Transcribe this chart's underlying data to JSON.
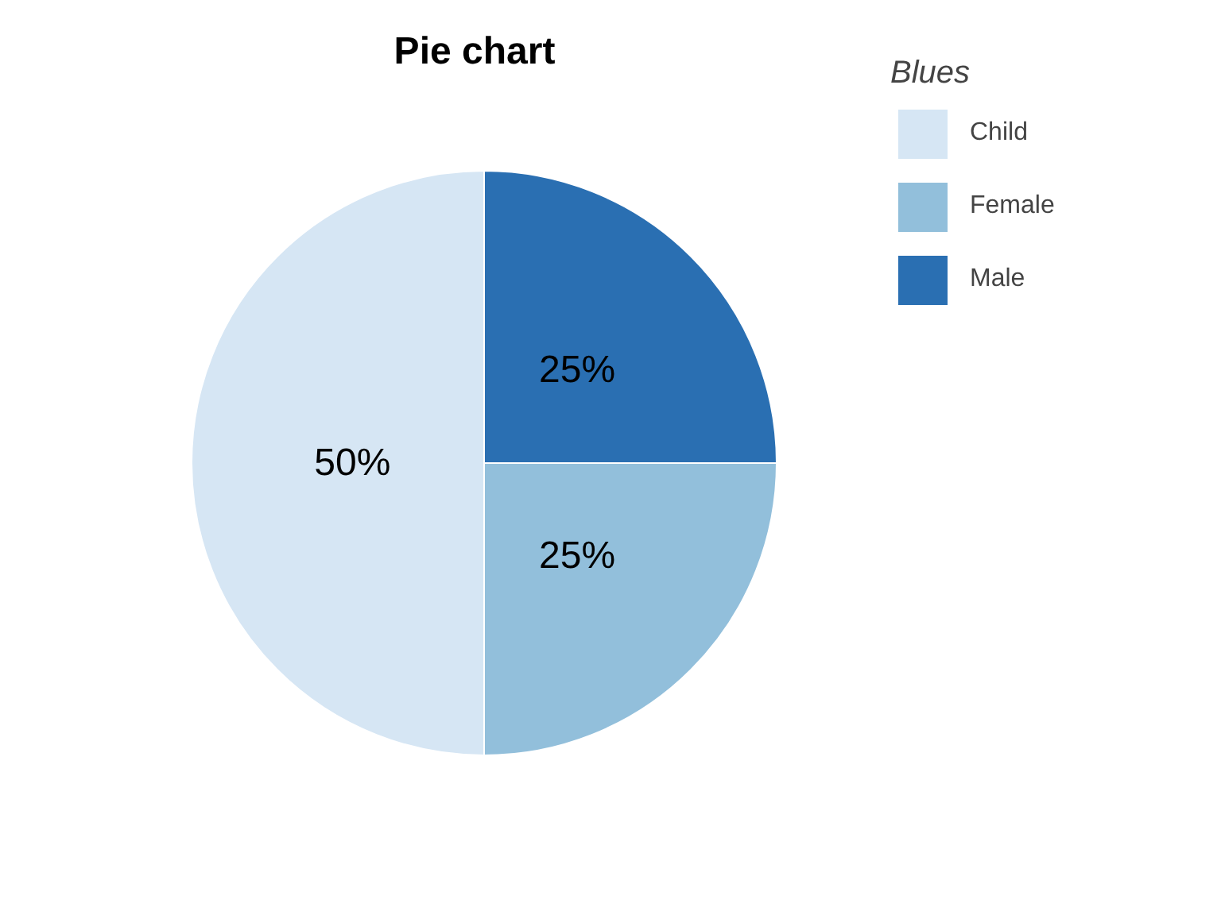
{
  "chart_data": {
    "type": "pie",
    "title": "Pie chart",
    "legend_title": "Blues",
    "categories": [
      "Child",
      "Female",
      "Male"
    ],
    "values": [
      50,
      25,
      25
    ],
    "value_labels": [
      "50%",
      "25%",
      "25%"
    ],
    "colors": [
      "#d6e6f4",
      "#92bfdb",
      "#2a6fb2"
    ],
    "legend": "right"
  }
}
